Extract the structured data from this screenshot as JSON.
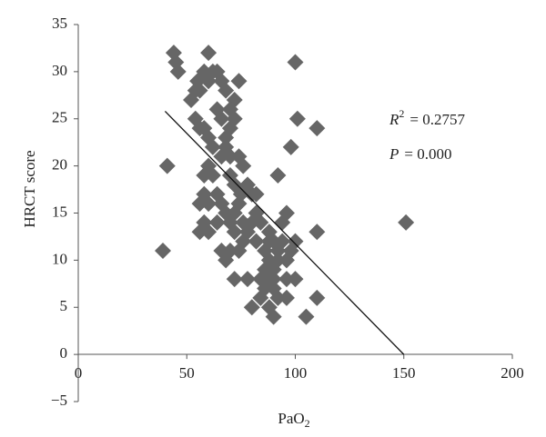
{
  "chart_data": {
    "type": "scatter",
    "xlabel": {
      "text": "PaO",
      "sub": "2"
    },
    "ylabel": "HRCT score",
    "color": "#666666",
    "xlim": [
      0,
      200
    ],
    "xticks": [
      0,
      50,
      100,
      150,
      200
    ],
    "ylim": [
      -5,
      35
    ],
    "yticks": [
      {
        "value": -5,
        "label": "−5"
      },
      0,
      5,
      10,
      15,
      20,
      25,
      30,
      35
    ],
    "x": [
      44,
      45,
      46,
      60,
      100,
      58,
      60,
      62,
      64,
      66,
      55,
      54,
      52,
      56,
      74,
      68,
      72,
      70,
      64,
      66,
      72,
      54,
      56,
      58,
      60,
      68,
      70,
      101,
      110,
      62,
      66,
      68,
      70,
      98,
      41,
      60,
      74,
      76,
      62,
      58,
      70,
      72,
      75,
      78,
      80,
      82,
      92,
      58,
      56,
      60,
      64,
      66,
      68,
      72,
      74,
      76,
      80,
      82,
      84,
      94,
      96,
      58,
      60,
      56,
      64,
      70,
      72,
      78,
      76,
      82,
      88,
      90,
      92,
      94,
      98,
      96,
      100,
      110,
      151,
      39,
      66,
      68,
      70,
      74,
      86,
      88,
      90,
      92,
      86,
      88,
      84,
      96,
      100,
      72,
      78,
      86,
      90,
      84,
      92,
      96,
      110,
      80,
      88,
      90,
      105,
      88,
      90
    ],
    "values": [
      32,
      31,
      30,
      32,
      31,
      30,
      29,
      30,
      30,
      29,
      29,
      28,
      27,
      28,
      29,
      28,
      27,
      26,
      26,
      25,
      25,
      25,
      24,
      24,
      23,
      23,
      24,
      25,
      24,
      22,
      21,
      22,
      21,
      22,
      20,
      20,
      21,
      20,
      19,
      19,
      19,
      18,
      17,
      18,
      17,
      17,
      19,
      17,
      16,
      16,
      17,
      16,
      15,
      15,
      16,
      14,
      14,
      15,
      14,
      14,
      15,
      14,
      13,
      13,
      14,
      14,
      13,
      13,
      12,
      12,
      13,
      12,
      11,
      12,
      11,
      10,
      12,
      13,
      14,
      11,
      11,
      10,
      11,
      11,
      11,
      10,
      9,
      10,
      9,
      8,
      8,
      8,
      8,
      8,
      8,
      7,
      7,
      6,
      6,
      6,
      6,
      5,
      5,
      4,
      4,
      12,
      8
    ],
    "regression": {
      "x": [
        40,
        150
      ],
      "y": [
        25.8,
        0
      ]
    },
    "annotations": [
      {
        "italic": "R",
        "sup": "2",
        "text": "= 0.2757"
      },
      {
        "italic": "P",
        "text": "= 0.000"
      }
    ]
  }
}
